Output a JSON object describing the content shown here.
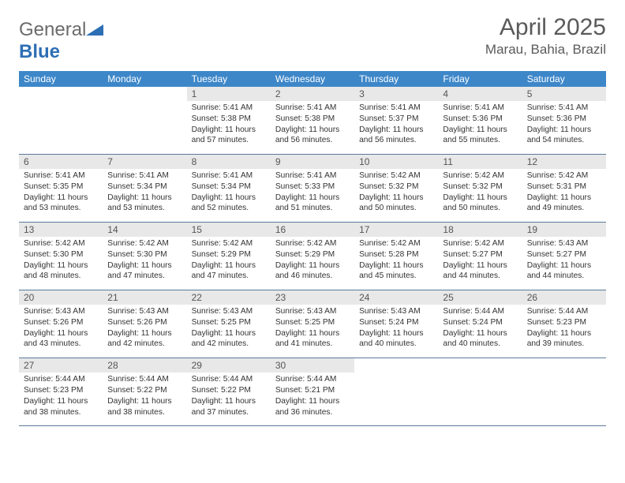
{
  "logo": {
    "part1": "General",
    "part2": "Blue"
  },
  "title": "April 2025",
  "location": "Marau, Bahia, Brazil",
  "colors": {
    "header_bg": "#3d87c9",
    "header_text": "#ffffff",
    "daynum_bg": "#e8e8e8",
    "grid_line": "#5a7a9a",
    "title_color": "#5a5a5a",
    "logo_gray": "#6b6b6b",
    "logo_blue": "#2d6fb5"
  },
  "dow": [
    "Sunday",
    "Monday",
    "Tuesday",
    "Wednesday",
    "Thursday",
    "Friday",
    "Saturday"
  ],
  "weeks": [
    [
      null,
      null,
      {
        "n": "1",
        "sr": "5:41 AM",
        "ss": "5:38 PM",
        "dl": "11 hours and 57 minutes."
      },
      {
        "n": "2",
        "sr": "5:41 AM",
        "ss": "5:38 PM",
        "dl": "11 hours and 56 minutes."
      },
      {
        "n": "3",
        "sr": "5:41 AM",
        "ss": "5:37 PM",
        "dl": "11 hours and 56 minutes."
      },
      {
        "n": "4",
        "sr": "5:41 AM",
        "ss": "5:36 PM",
        "dl": "11 hours and 55 minutes."
      },
      {
        "n": "5",
        "sr": "5:41 AM",
        "ss": "5:36 PM",
        "dl": "11 hours and 54 minutes."
      }
    ],
    [
      {
        "n": "6",
        "sr": "5:41 AM",
        "ss": "5:35 PM",
        "dl": "11 hours and 53 minutes."
      },
      {
        "n": "7",
        "sr": "5:41 AM",
        "ss": "5:34 PM",
        "dl": "11 hours and 53 minutes."
      },
      {
        "n": "8",
        "sr": "5:41 AM",
        "ss": "5:34 PM",
        "dl": "11 hours and 52 minutes."
      },
      {
        "n": "9",
        "sr": "5:41 AM",
        "ss": "5:33 PM",
        "dl": "11 hours and 51 minutes."
      },
      {
        "n": "10",
        "sr": "5:42 AM",
        "ss": "5:32 PM",
        "dl": "11 hours and 50 minutes."
      },
      {
        "n": "11",
        "sr": "5:42 AM",
        "ss": "5:32 PM",
        "dl": "11 hours and 50 minutes."
      },
      {
        "n": "12",
        "sr": "5:42 AM",
        "ss": "5:31 PM",
        "dl": "11 hours and 49 minutes."
      }
    ],
    [
      {
        "n": "13",
        "sr": "5:42 AM",
        "ss": "5:30 PM",
        "dl": "11 hours and 48 minutes."
      },
      {
        "n": "14",
        "sr": "5:42 AM",
        "ss": "5:30 PM",
        "dl": "11 hours and 47 minutes."
      },
      {
        "n": "15",
        "sr": "5:42 AM",
        "ss": "5:29 PM",
        "dl": "11 hours and 47 minutes."
      },
      {
        "n": "16",
        "sr": "5:42 AM",
        "ss": "5:29 PM",
        "dl": "11 hours and 46 minutes."
      },
      {
        "n": "17",
        "sr": "5:42 AM",
        "ss": "5:28 PM",
        "dl": "11 hours and 45 minutes."
      },
      {
        "n": "18",
        "sr": "5:42 AM",
        "ss": "5:27 PM",
        "dl": "11 hours and 44 minutes."
      },
      {
        "n": "19",
        "sr": "5:43 AM",
        "ss": "5:27 PM",
        "dl": "11 hours and 44 minutes."
      }
    ],
    [
      {
        "n": "20",
        "sr": "5:43 AM",
        "ss": "5:26 PM",
        "dl": "11 hours and 43 minutes."
      },
      {
        "n": "21",
        "sr": "5:43 AM",
        "ss": "5:26 PM",
        "dl": "11 hours and 42 minutes."
      },
      {
        "n": "22",
        "sr": "5:43 AM",
        "ss": "5:25 PM",
        "dl": "11 hours and 42 minutes."
      },
      {
        "n": "23",
        "sr": "5:43 AM",
        "ss": "5:25 PM",
        "dl": "11 hours and 41 minutes."
      },
      {
        "n": "24",
        "sr": "5:43 AM",
        "ss": "5:24 PM",
        "dl": "11 hours and 40 minutes."
      },
      {
        "n": "25",
        "sr": "5:44 AM",
        "ss": "5:24 PM",
        "dl": "11 hours and 40 minutes."
      },
      {
        "n": "26",
        "sr": "5:44 AM",
        "ss": "5:23 PM",
        "dl": "11 hours and 39 minutes."
      }
    ],
    [
      {
        "n": "27",
        "sr": "5:44 AM",
        "ss": "5:23 PM",
        "dl": "11 hours and 38 minutes."
      },
      {
        "n": "28",
        "sr": "5:44 AM",
        "ss": "5:22 PM",
        "dl": "11 hours and 38 minutes."
      },
      {
        "n": "29",
        "sr": "5:44 AM",
        "ss": "5:22 PM",
        "dl": "11 hours and 37 minutes."
      },
      {
        "n": "30",
        "sr": "5:44 AM",
        "ss": "5:21 PM",
        "dl": "11 hours and 36 minutes."
      },
      null,
      null,
      null
    ]
  ],
  "labels": {
    "sunrise": "Sunrise:",
    "sunset": "Sunset:",
    "daylight": "Daylight:"
  }
}
